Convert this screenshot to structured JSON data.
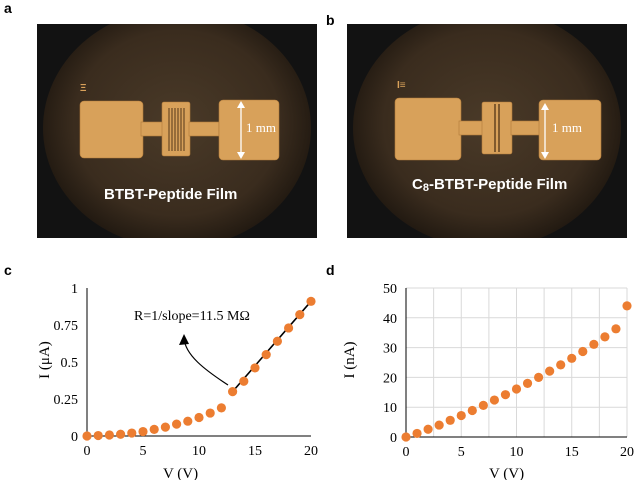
{
  "panels": {
    "a": {
      "letter": "a",
      "film_label": "BTBT-Peptide Film",
      "scale_label": "1 mm"
    },
    "b": {
      "letter": "b",
      "film_label_prefix": "C",
      "film_label_subscript": "8",
      "film_label_rest": "-BTBT-Peptide Film",
      "scale_label": "1 mm"
    },
    "c": {
      "letter": "c"
    },
    "d": {
      "letter": "d"
    }
  },
  "colors": {
    "marker": "#ec7d31",
    "fit_line": "#000000",
    "electrode": "#d8a15a",
    "microscope_field": "#3a2c1e"
  },
  "chart_data": [
    {
      "id": "c",
      "type": "scatter",
      "xlabel": "V (V)",
      "ylabel": "I (μA)",
      "xlim": [
        0,
        20
      ],
      "ylim": [
        0,
        1
      ],
      "x_ticks": [
        "0",
        "5",
        "10",
        "15",
        "20"
      ],
      "y_ticks": [
        "0",
        "0.25",
        "0.5",
        "0.75",
        "1"
      ],
      "grid": false,
      "x": [
        0,
        1,
        2,
        3,
        4,
        5,
        6,
        7,
        8,
        9,
        10,
        11,
        12,
        13,
        14,
        15,
        16,
        17,
        18,
        19,
        20
      ],
      "values": [
        0,
        0.003,
        0.007,
        0.012,
        0.02,
        0.03,
        0.045,
        0.06,
        0.08,
        0.1,
        0.125,
        0.155,
        0.19,
        0.3,
        0.37,
        0.46,
        0.55,
        0.64,
        0.73,
        0.82,
        0.91
      ],
      "fit_line": {
        "x": [
          13,
          20
        ],
        "y": [
          0.3,
          0.91
        ]
      },
      "annotation": "R=1/slope=11.5 MΩ"
    },
    {
      "id": "d",
      "type": "scatter",
      "xlabel": "V (V)",
      "ylabel": "I (nA)",
      "xlim": [
        0,
        20
      ],
      "ylim": [
        0,
        50
      ],
      "x_ticks": [
        "0",
        "5",
        "10",
        "15",
        "20"
      ],
      "y_ticks": [
        "0",
        "10",
        "20",
        "30",
        "40",
        "50"
      ],
      "grid": true,
      "x": [
        0,
        1,
        2,
        3,
        4,
        5,
        6,
        7,
        8,
        9,
        10,
        11,
        12,
        13,
        14,
        15,
        16,
        17,
        18,
        19,
        20
      ],
      "values": [
        0,
        1.2,
        2.6,
        4,
        5.6,
        7.2,
        8.9,
        10.6,
        12.4,
        14.2,
        16.1,
        18,
        20,
        22.1,
        24.2,
        26.4,
        28.7,
        31.1,
        33.6,
        36.3,
        44
      ]
    }
  ]
}
